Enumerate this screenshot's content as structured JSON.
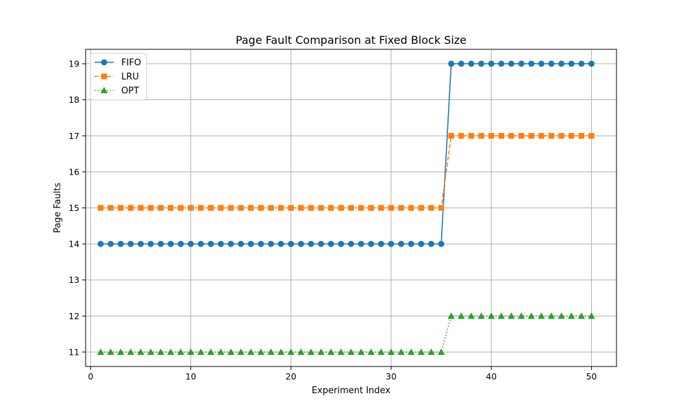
{
  "chart_data": {
    "type": "line",
    "title": "Page Fault Comparison at Fixed Block Size",
    "xlabel": "Experiment Index",
    "ylabel": "Page Faults",
    "xlim": [
      -0.5,
      52.5
    ],
    "ylim": [
      10.6,
      19.4
    ],
    "xticks": [
      0,
      10,
      20,
      30,
      40,
      50
    ],
    "yticks": [
      11,
      12,
      13,
      14,
      15,
      16,
      17,
      18,
      19
    ],
    "grid": true,
    "legend_position": "top-left",
    "x": [
      1,
      2,
      3,
      4,
      5,
      6,
      7,
      8,
      9,
      10,
      11,
      12,
      13,
      14,
      15,
      16,
      17,
      18,
      19,
      20,
      21,
      22,
      23,
      24,
      25,
      26,
      27,
      28,
      29,
      30,
      31,
      32,
      33,
      34,
      35,
      36,
      37,
      38,
      39,
      40,
      41,
      42,
      43,
      44,
      45,
      46,
      47,
      48,
      49,
      50
    ],
    "series": [
      {
        "name": "FIFO",
        "color": "#1f77b4",
        "marker": "circle",
        "linestyle": "solid",
        "values": [
          14,
          14,
          14,
          14,
          14,
          14,
          14,
          14,
          14,
          14,
          14,
          14,
          14,
          14,
          14,
          14,
          14,
          14,
          14,
          14,
          14,
          14,
          14,
          14,
          14,
          14,
          14,
          14,
          14,
          14,
          14,
          14,
          14,
          14,
          14,
          19,
          19,
          19,
          19,
          19,
          19,
          19,
          19,
          19,
          19,
          19,
          19,
          19,
          19,
          19
        ]
      },
      {
        "name": "LRU",
        "color": "#ff7f0e",
        "marker": "square",
        "linestyle": "dashed",
        "values": [
          15,
          15,
          15,
          15,
          15,
          15,
          15,
          15,
          15,
          15,
          15,
          15,
          15,
          15,
          15,
          15,
          15,
          15,
          15,
          15,
          15,
          15,
          15,
          15,
          15,
          15,
          15,
          15,
          15,
          15,
          15,
          15,
          15,
          15,
          15,
          17,
          17,
          17,
          17,
          17,
          17,
          17,
          17,
          17,
          17,
          17,
          17,
          17,
          17,
          17
        ]
      },
      {
        "name": "OPT",
        "color": "#2ca02c",
        "marker": "triangle",
        "linestyle": "dotted",
        "values": [
          11,
          11,
          11,
          11,
          11,
          11,
          11,
          11,
          11,
          11,
          11,
          11,
          11,
          11,
          11,
          11,
          11,
          11,
          11,
          11,
          11,
          11,
          11,
          11,
          11,
          11,
          11,
          11,
          11,
          11,
          11,
          11,
          11,
          11,
          11,
          12,
          12,
          12,
          12,
          12,
          12,
          12,
          12,
          12,
          12,
          12,
          12,
          12,
          12,
          12
        ]
      }
    ]
  }
}
